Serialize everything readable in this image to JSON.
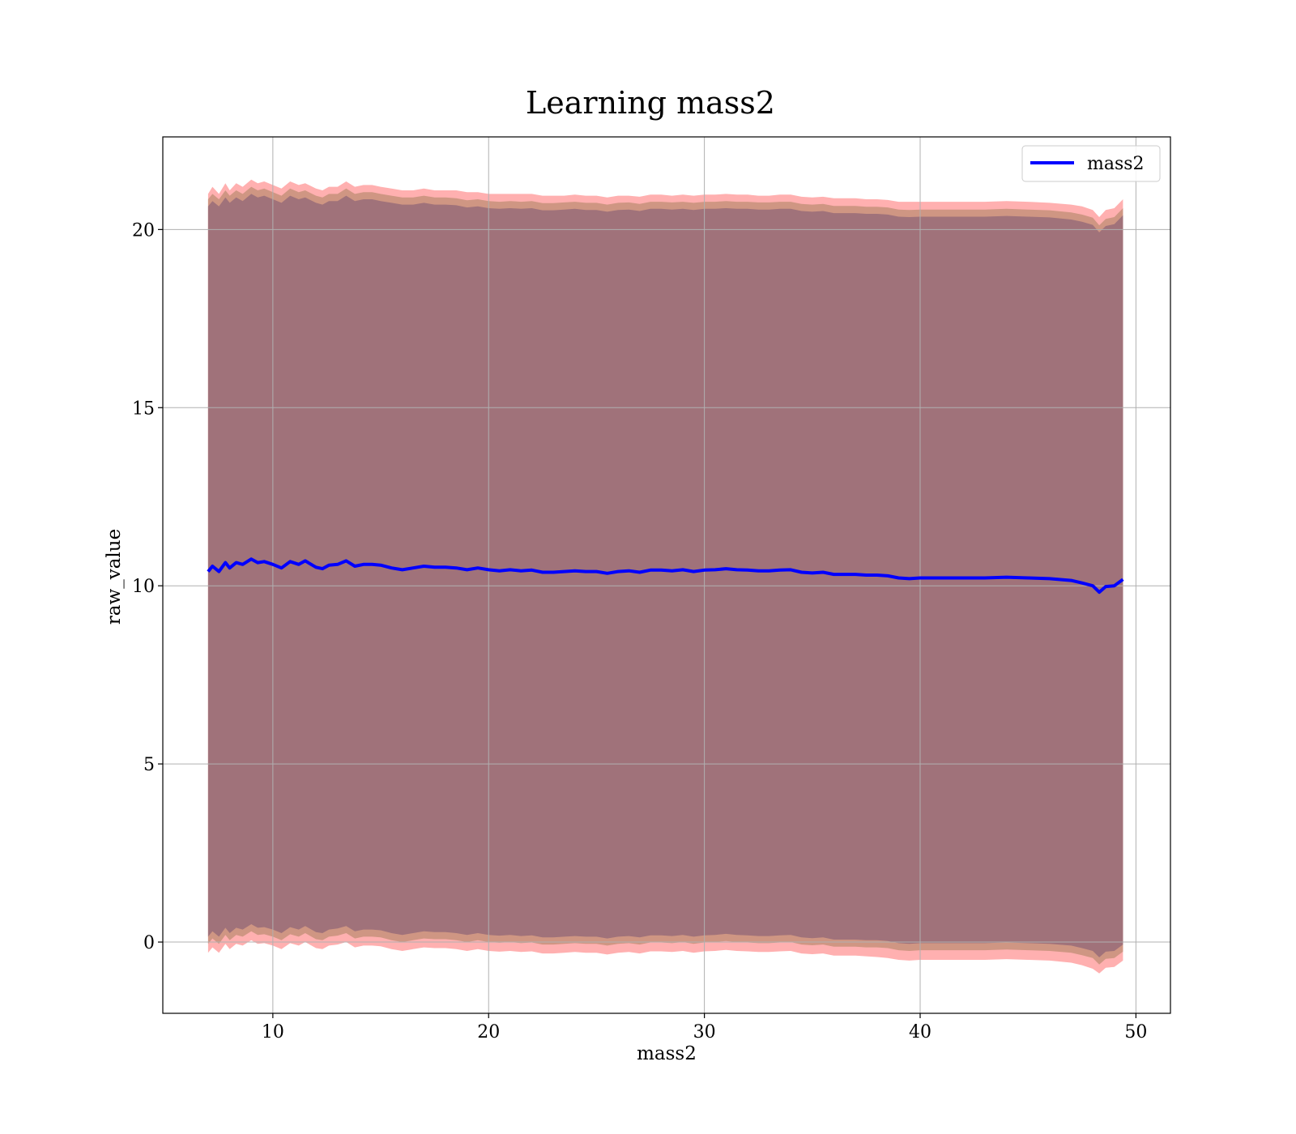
{
  "chart_data": {
    "type": "line",
    "title": "Learning mass2",
    "xlabel": "mass2",
    "ylabel": "raw_value",
    "xlim": [
      4.9,
      51.6
    ],
    "ylim": [
      -2.0,
      22.6
    ],
    "xticks": [
      10,
      20,
      30,
      40,
      50
    ],
    "yticks": [
      0,
      5,
      10,
      15,
      20
    ],
    "grid": true,
    "legend": {
      "placement": "top-right",
      "entries": [
        "mass2"
      ]
    },
    "colors": {
      "line": "#0000ff",
      "outer_band": "#ffb0b0",
      "middle_band": "#cf9683",
      "inner_band": "#a0727a",
      "axes": "#000000",
      "grid": "#b0b0b0"
    },
    "series": [
      {
        "name": "mass2",
        "x": [
          7.0,
          7.2,
          7.5,
          7.8,
          8.0,
          8.3,
          8.6,
          9.0,
          9.3,
          9.6,
          10.0,
          10.4,
          10.8,
          11.2,
          11.5,
          12.0,
          12.3,
          12.6,
          13.0,
          13.4,
          13.8,
          14.2,
          14.6,
          15.0,
          15.5,
          16.0,
          16.5,
          17.0,
          17.5,
          18.0,
          18.5,
          19.0,
          19.5,
          20.0,
          20.5,
          21.0,
          21.5,
          22.0,
          22.5,
          23.0,
          23.5,
          24.0,
          24.5,
          25.0,
          25.5,
          26.0,
          26.5,
          27.0,
          27.5,
          28.0,
          28.5,
          29.0,
          29.5,
          30.0,
          30.5,
          31.0,
          31.5,
          32.0,
          32.5,
          33.0,
          33.5,
          34.0,
          34.5,
          35.0,
          35.5,
          36.0,
          36.5,
          37.0,
          37.5,
          38.0,
          38.5,
          39.0,
          39.5,
          40.0,
          41.0,
          42.0,
          43.0,
          44.0,
          45.0,
          46.0,
          47.0,
          47.5,
          48.0,
          48.3,
          48.6,
          49.0,
          49.4
        ],
        "y": [
          10.4,
          10.55,
          10.4,
          10.65,
          10.5,
          10.65,
          10.6,
          10.75,
          10.65,
          10.68,
          10.6,
          10.5,
          10.68,
          10.6,
          10.7,
          10.52,
          10.48,
          10.58,
          10.6,
          10.7,
          10.55,
          10.6,
          10.6,
          10.58,
          10.5,
          10.45,
          10.5,
          10.55,
          10.52,
          10.52,
          10.5,
          10.45,
          10.5,
          10.45,
          10.42,
          10.45,
          10.42,
          10.44,
          10.38,
          10.38,
          10.4,
          10.42,
          10.4,
          10.4,
          10.35,
          10.4,
          10.42,
          10.38,
          10.44,
          10.44,
          10.42,
          10.45,
          10.4,
          10.44,
          10.45,
          10.48,
          10.45,
          10.44,
          10.42,
          10.42,
          10.44,
          10.45,
          10.38,
          10.36,
          10.38,
          10.32,
          10.32,
          10.32,
          10.3,
          10.3,
          10.28,
          10.22,
          10.2,
          10.22,
          10.22,
          10.22,
          10.22,
          10.24,
          10.22,
          10.2,
          10.15,
          10.08,
          10.0,
          9.82,
          9.98,
          10.0,
          10.18
        ]
      }
    ],
    "bands": {
      "outer_upper": [
        21.0,
        21.2,
        21.0,
        21.3,
        21.1,
        21.3,
        21.2,
        21.4,
        21.3,
        21.35,
        21.25,
        21.15,
        21.35,
        21.25,
        21.3,
        21.15,
        21.1,
        21.2,
        21.2,
        21.35,
        21.2,
        21.25,
        21.25,
        21.2,
        21.15,
        21.1,
        21.1,
        21.15,
        21.1,
        21.1,
        21.1,
        21.05,
        21.05,
        21.0,
        21.0,
        21.0,
        21.0,
        21.0,
        20.95,
        20.95,
        20.95,
        20.98,
        20.95,
        20.95,
        20.9,
        20.95,
        20.95,
        20.92,
        20.98,
        20.98,
        20.95,
        20.98,
        20.95,
        20.98,
        20.98,
        21.0,
        20.98,
        20.98,
        20.95,
        20.95,
        20.98,
        20.98,
        20.92,
        20.9,
        20.92,
        20.88,
        20.88,
        20.88,
        20.85,
        20.85,
        20.83,
        20.78,
        20.78,
        20.78,
        20.78,
        20.78,
        20.78,
        20.8,
        20.78,
        20.75,
        20.7,
        20.65,
        20.55,
        20.35,
        20.55,
        20.6,
        20.85
      ],
      "middle_upper": [
        20.85,
        21.0,
        20.85,
        21.1,
        20.95,
        21.1,
        21.0,
        21.2,
        21.1,
        21.15,
        21.05,
        20.95,
        21.15,
        21.05,
        21.1,
        20.95,
        20.9,
        21.0,
        21.0,
        21.15,
        21.0,
        21.05,
        21.05,
        21.0,
        20.95,
        20.9,
        20.9,
        20.95,
        20.9,
        20.9,
        20.88,
        20.82,
        20.85,
        20.8,
        20.78,
        20.8,
        20.78,
        20.8,
        20.74,
        20.74,
        20.76,
        20.78,
        20.75,
        20.75,
        20.7,
        20.75,
        20.76,
        20.72,
        20.78,
        20.78,
        20.76,
        20.78,
        20.75,
        20.78,
        20.78,
        20.8,
        20.78,
        20.78,
        20.76,
        20.76,
        20.78,
        20.78,
        20.72,
        20.7,
        20.72,
        20.66,
        20.66,
        20.66,
        20.64,
        20.64,
        20.62,
        20.56,
        20.55,
        20.56,
        20.56,
        20.56,
        20.56,
        20.58,
        20.56,
        20.54,
        20.48,
        20.42,
        20.33,
        20.12,
        20.3,
        20.35,
        20.6
      ],
      "inner_upper": [
        20.65,
        20.8,
        20.65,
        20.9,
        20.75,
        20.9,
        20.8,
        21.0,
        20.9,
        20.95,
        20.85,
        20.75,
        20.95,
        20.85,
        20.9,
        20.75,
        20.7,
        20.8,
        20.8,
        20.95,
        20.8,
        20.85,
        20.85,
        20.8,
        20.75,
        20.7,
        20.7,
        20.75,
        20.7,
        20.7,
        20.68,
        20.62,
        20.65,
        20.6,
        20.58,
        20.6,
        20.58,
        20.6,
        20.54,
        20.54,
        20.56,
        20.58,
        20.55,
        20.55,
        20.5,
        20.55,
        20.56,
        20.52,
        20.58,
        20.58,
        20.56,
        20.58,
        20.55,
        20.58,
        20.58,
        20.6,
        20.58,
        20.58,
        20.56,
        20.56,
        20.58,
        20.58,
        20.52,
        20.5,
        20.52,
        20.46,
        20.46,
        20.46,
        20.44,
        20.44,
        20.42,
        20.36,
        20.35,
        20.36,
        20.36,
        20.36,
        20.36,
        20.38,
        20.36,
        20.34,
        20.28,
        20.22,
        20.13,
        19.92,
        20.1,
        20.15,
        20.4
      ],
      "inner_lower": [
        0.15,
        0.3,
        0.15,
        0.4,
        0.25,
        0.4,
        0.35,
        0.5,
        0.4,
        0.42,
        0.35,
        0.25,
        0.42,
        0.35,
        0.45,
        0.28,
        0.25,
        0.35,
        0.38,
        0.45,
        0.3,
        0.35,
        0.35,
        0.33,
        0.25,
        0.2,
        0.25,
        0.3,
        0.28,
        0.28,
        0.25,
        0.2,
        0.25,
        0.2,
        0.18,
        0.2,
        0.17,
        0.19,
        0.13,
        0.13,
        0.15,
        0.17,
        0.15,
        0.15,
        0.1,
        0.15,
        0.17,
        0.13,
        0.19,
        0.19,
        0.17,
        0.2,
        0.15,
        0.19,
        0.2,
        0.23,
        0.2,
        0.19,
        0.17,
        0.17,
        0.19,
        0.2,
        0.13,
        0.11,
        0.13,
        0.07,
        0.07,
        0.07,
        0.05,
        0.05,
        0.03,
        -0.03,
        -0.05,
        -0.03,
        -0.03,
        -0.03,
        -0.03,
        -0.01,
        -0.03,
        -0.05,
        -0.1,
        -0.17,
        -0.25,
        -0.43,
        -0.27,
        -0.25,
        -0.07
      ],
      "middle_lower": [
        -0.05,
        0.1,
        -0.05,
        0.2,
        0.05,
        0.2,
        0.15,
        0.3,
        0.2,
        0.22,
        0.15,
        0.05,
        0.22,
        0.15,
        0.25,
        0.08,
        0.05,
        0.15,
        0.18,
        0.25,
        0.1,
        0.15,
        0.15,
        0.13,
        0.05,
        0.0,
        0.05,
        0.1,
        0.08,
        0.08,
        0.05,
        0.0,
        0.05,
        0.0,
        -0.02,
        0.0,
        -0.03,
        -0.01,
        -0.07,
        -0.07,
        -0.05,
        -0.03,
        -0.05,
        -0.05,
        -0.1,
        -0.05,
        -0.03,
        -0.07,
        -0.01,
        -0.01,
        -0.03,
        0.0,
        -0.05,
        -0.01,
        0.0,
        0.03,
        0.0,
        -0.01,
        -0.03,
        -0.03,
        -0.01,
        0.0,
        -0.07,
        -0.09,
        -0.07,
        -0.13,
        -0.13,
        -0.13,
        -0.15,
        -0.15,
        -0.17,
        -0.23,
        -0.25,
        -0.23,
        -0.23,
        -0.23,
        -0.23,
        -0.21,
        -0.23,
        -0.25,
        -0.3,
        -0.37,
        -0.45,
        -0.63,
        -0.47,
        -0.45,
        -0.27
      ],
      "outer_lower": [
        -0.3,
        -0.15,
        -0.3,
        -0.05,
        -0.2,
        -0.05,
        -0.1,
        0.05,
        -0.05,
        -0.03,
        -0.1,
        -0.2,
        -0.03,
        -0.1,
        0.0,
        -0.17,
        -0.2,
        -0.1,
        -0.07,
        0.0,
        -0.15,
        -0.1,
        -0.1,
        -0.12,
        -0.2,
        -0.25,
        -0.2,
        -0.15,
        -0.17,
        -0.17,
        -0.2,
        -0.25,
        -0.2,
        -0.25,
        -0.27,
        -0.25,
        -0.28,
        -0.26,
        -0.32,
        -0.32,
        -0.3,
        -0.28,
        -0.3,
        -0.3,
        -0.35,
        -0.3,
        -0.28,
        -0.32,
        -0.26,
        -0.26,
        -0.28,
        -0.25,
        -0.3,
        -0.26,
        -0.25,
        -0.22,
        -0.25,
        -0.26,
        -0.28,
        -0.28,
        -0.26,
        -0.25,
        -0.32,
        -0.34,
        -0.32,
        -0.38,
        -0.38,
        -0.38,
        -0.4,
        -0.42,
        -0.45,
        -0.5,
        -0.52,
        -0.5,
        -0.5,
        -0.5,
        -0.5,
        -0.48,
        -0.5,
        -0.52,
        -0.58,
        -0.65,
        -0.75,
        -0.88,
        -0.72,
        -0.7,
        -0.52
      ]
    }
  }
}
